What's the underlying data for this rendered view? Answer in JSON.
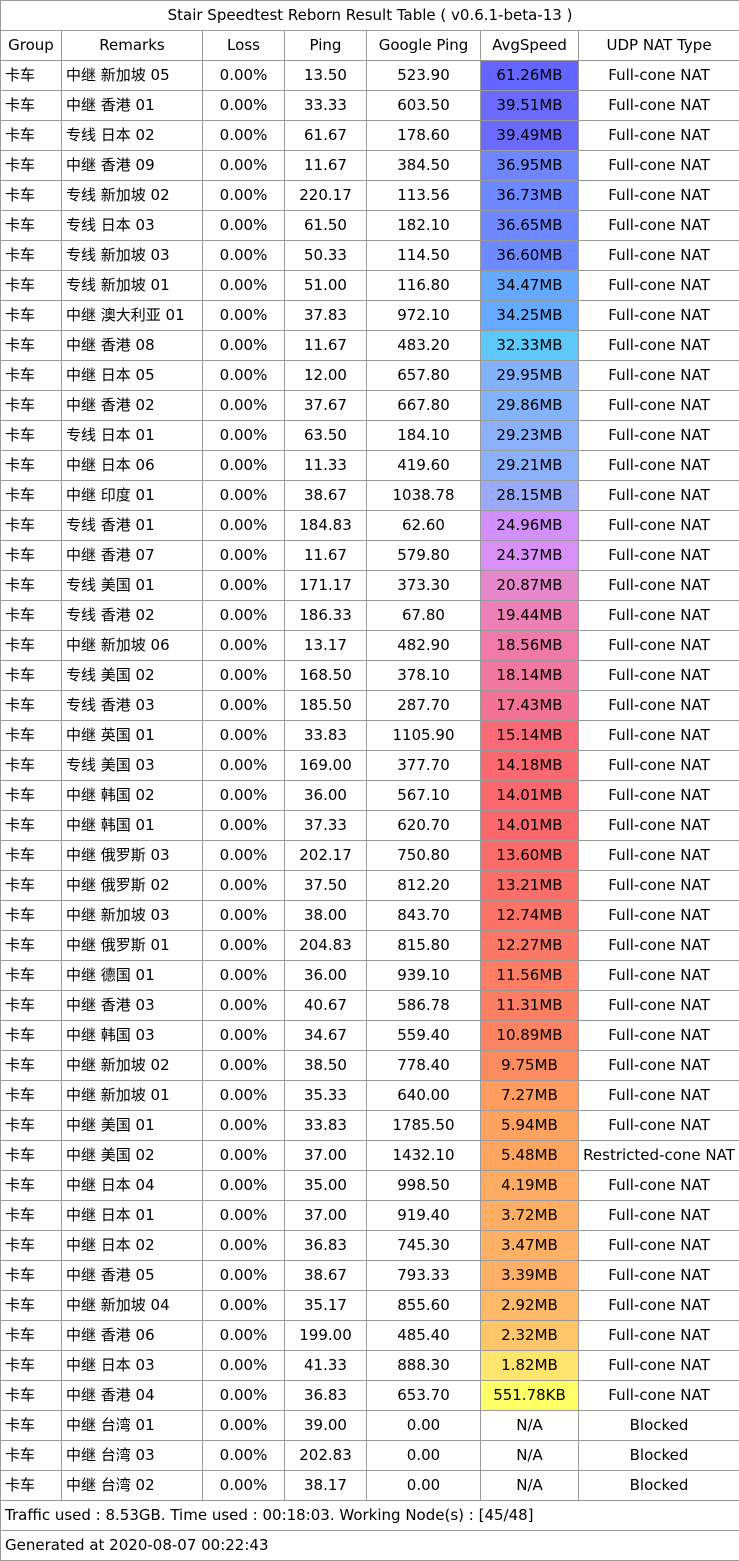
{
  "title": "Stair Speedtest Reborn Result Table ( v0.6.1-beta-13 )",
  "columns": [
    "Group",
    "Remarks",
    "Loss",
    "Ping",
    "Google Ping",
    "AvgSpeed",
    "UDP NAT Type"
  ],
  "rows": [
    {
      "group": "卡车",
      "remarks": "中继 新加坡 05",
      "loss": "0.00%",
      "ping": "13.50",
      "google_ping": "523.90",
      "avg_speed": "61.26MB",
      "speed_color": "#6464ff",
      "nat_type": "Full-cone NAT"
    },
    {
      "group": "卡车",
      "remarks": "中继 香港 01",
      "loss": "0.00%",
      "ping": "33.33",
      "google_ping": "603.50",
      "avg_speed": "39.51MB",
      "speed_color": "#6a6afd",
      "nat_type": "Full-cone NAT"
    },
    {
      "group": "卡车",
      "remarks": "专线 日本 02",
      "loss": "0.00%",
      "ping": "61.67",
      "google_ping": "178.60",
      "avg_speed": "39.49MB",
      "speed_color": "#6a6afd",
      "nat_type": "Full-cone NAT"
    },
    {
      "group": "卡车",
      "remarks": "中继 香港 09",
      "loss": "0.00%",
      "ping": "11.67",
      "google_ping": "384.50",
      "avg_speed": "36.95MB",
      "speed_color": "#6f86ff",
      "nat_type": "Full-cone NAT"
    },
    {
      "group": "卡车",
      "remarks": "专线 新加坡 02",
      "loss": "0.00%",
      "ping": "220.17",
      "google_ping": "113.56",
      "avg_speed": "36.73MB",
      "speed_color": "#6e88ff",
      "nat_type": "Full-cone NAT"
    },
    {
      "group": "卡车",
      "remarks": "专线 日本 03",
      "loss": "0.00%",
      "ping": "61.50",
      "google_ping": "182.10",
      "avg_speed": "36.65MB",
      "speed_color": "#6e89ff",
      "nat_type": "Full-cone NAT"
    },
    {
      "group": "卡车",
      "remarks": "专线 新加坡 03",
      "loss": "0.00%",
      "ping": "50.33",
      "google_ping": "114.50",
      "avg_speed": "36.60MB",
      "speed_color": "#6e8aff",
      "nat_type": "Full-cone NAT"
    },
    {
      "group": "卡车",
      "remarks": "专线 新加坡 01",
      "loss": "0.00%",
      "ping": "51.00",
      "google_ping": "116.80",
      "avg_speed": "34.47MB",
      "speed_color": "#66a8fd",
      "nat_type": "Full-cone NAT"
    },
    {
      "group": "卡车",
      "remarks": "中继 澳大利亚 01",
      "loss": "0.00%",
      "ping": "37.83",
      "google_ping": "972.10",
      "avg_speed": "34.25MB",
      "speed_color": "#66aafd",
      "nat_type": "Full-cone NAT"
    },
    {
      "group": "卡车",
      "remarks": "中继 香港 08",
      "loss": "0.00%",
      "ping": "11.67",
      "google_ping": "483.20",
      "avg_speed": "32.33MB",
      "speed_color": "#5ec8fa",
      "nat_type": "Full-cone NAT"
    },
    {
      "group": "卡车",
      "remarks": "中继 日本 05",
      "loss": "0.00%",
      "ping": "12.00",
      "google_ping": "657.80",
      "avg_speed": "29.95MB",
      "speed_color": "#83b2fd",
      "nat_type": "Full-cone NAT"
    },
    {
      "group": "卡车",
      "remarks": "中继 香港 02",
      "loss": "0.00%",
      "ping": "37.67",
      "google_ping": "667.80",
      "avg_speed": "29.86MB",
      "speed_color": "#84b3fd",
      "nat_type": "Full-cone NAT"
    },
    {
      "group": "卡车",
      "remarks": "专线 日本 01",
      "loss": "0.00%",
      "ping": "63.50",
      "google_ping": "184.10",
      "avg_speed": "29.23MB",
      "speed_color": "#8cb1fc",
      "nat_type": "Full-cone NAT"
    },
    {
      "group": "卡车",
      "remarks": "中继 日本 06",
      "loss": "0.00%",
      "ping": "11.33",
      "google_ping": "419.60",
      "avg_speed": "29.21MB",
      "speed_color": "#8cb1fc",
      "nat_type": "Full-cone NAT"
    },
    {
      "group": "卡车",
      "remarks": "中继 印度 01",
      "loss": "0.00%",
      "ping": "38.67",
      "google_ping": "1038.78",
      "avg_speed": "28.15MB",
      "speed_color": "#99aaf9",
      "nat_type": "Full-cone NAT"
    },
    {
      "group": "卡车",
      "remarks": "专线 香港 01",
      "loss": "0.00%",
      "ping": "184.83",
      "google_ping": "62.60",
      "avg_speed": "24.96MB",
      "speed_color": "#d290fb",
      "nat_type": "Full-cone NAT"
    },
    {
      "group": "卡车",
      "remarks": "中继 香港 07",
      "loss": "0.00%",
      "ping": "11.67",
      "google_ping": "579.80",
      "avg_speed": "24.37MB",
      "speed_color": "#d890f7",
      "nat_type": "Full-cone NAT"
    },
    {
      "group": "卡车",
      "remarks": "专线 美国 01",
      "loss": "0.00%",
      "ping": "171.17",
      "google_ping": "373.30",
      "avg_speed": "20.87MB",
      "speed_color": "#e888cc",
      "nat_type": "Full-cone NAT"
    },
    {
      "group": "卡车",
      "remarks": "专线 香港 02",
      "loss": "0.00%",
      "ping": "186.33",
      "google_ping": "67.80",
      "avg_speed": "19.44MB",
      "speed_color": "#ec80b7",
      "nat_type": "Full-cone NAT"
    },
    {
      "group": "卡车",
      "remarks": "中继 新加坡 06",
      "loss": "0.00%",
      "ping": "13.17",
      "google_ping": "482.90",
      "avg_speed": "18.56MB",
      "speed_color": "#ef7aa7",
      "nat_type": "Full-cone NAT"
    },
    {
      "group": "卡车",
      "remarks": "专线 美国 02",
      "loss": "0.00%",
      "ping": "168.50",
      "google_ping": "378.10",
      "avg_speed": "18.14MB",
      "speed_color": "#f077a0",
      "nat_type": "Full-cone NAT"
    },
    {
      "group": "卡车",
      "remarks": "专线 香港 03",
      "loss": "0.00%",
      "ping": "185.50",
      "google_ping": "287.70",
      "avg_speed": "17.43MB",
      "speed_color": "#f27395",
      "nat_type": "Full-cone NAT"
    },
    {
      "group": "卡车",
      "remarks": "中继 英国 01",
      "loss": "0.00%",
      "ping": "33.83",
      "google_ping": "1105.90",
      "avg_speed": "15.14MB",
      "speed_color": "#f86a78",
      "nat_type": "Full-cone NAT"
    },
    {
      "group": "卡车",
      "remarks": "专线 美国 03",
      "loss": "0.00%",
      "ping": "169.00",
      "google_ping": "377.70",
      "avg_speed": "14.18MB",
      "speed_color": "#fa6870",
      "nat_type": "Full-cone NAT"
    },
    {
      "group": "卡车",
      "remarks": "中继 韩国 02",
      "loss": "0.00%",
      "ping": "36.00",
      "google_ping": "567.10",
      "avg_speed": "14.01MB",
      "speed_color": "#fa686e",
      "nat_type": "Full-cone NAT"
    },
    {
      "group": "卡车",
      "remarks": "中继 韩国 01",
      "loss": "0.00%",
      "ping": "37.33",
      "google_ping": "620.70",
      "avg_speed": "14.01MB",
      "speed_color": "#fa686e",
      "nat_type": "Full-cone NAT"
    },
    {
      "group": "卡车",
      "remarks": "中继 俄罗斯 03",
      "loss": "0.00%",
      "ping": "202.17",
      "google_ping": "750.80",
      "avg_speed": "13.60MB",
      "speed_color": "#fa6c6a",
      "nat_type": "Full-cone NAT"
    },
    {
      "group": "卡车",
      "remarks": "中继 俄罗斯 02",
      "loss": "0.00%",
      "ping": "37.50",
      "google_ping": "812.20",
      "avg_speed": "13.21MB",
      "speed_color": "#fa6f69",
      "nat_type": "Full-cone NAT"
    },
    {
      "group": "卡车",
      "remarks": "中继 新加坡 03",
      "loss": "0.00%",
      "ping": "38.00",
      "google_ping": "843.70",
      "avg_speed": "12.74MB",
      "speed_color": "#fb7367",
      "nat_type": "Full-cone NAT"
    },
    {
      "group": "卡车",
      "remarks": "中继 俄罗斯 01",
      "loss": "0.00%",
      "ping": "204.83",
      "google_ping": "815.80",
      "avg_speed": "12.27MB",
      "speed_color": "#fb7766",
      "nat_type": "Full-cone NAT"
    },
    {
      "group": "卡车",
      "remarks": "中继 德国 01",
      "loss": "0.00%",
      "ping": "36.00",
      "google_ping": "939.10",
      "avg_speed": "11.56MB",
      "speed_color": "#fc7d64",
      "nat_type": "Full-cone NAT"
    },
    {
      "group": "卡车",
      "remarks": "中继 香港 03",
      "loss": "0.00%",
      "ping": "40.67",
      "google_ping": "586.78",
      "avg_speed": "11.31MB",
      "speed_color": "#fc7f63",
      "nat_type": "Full-cone NAT"
    },
    {
      "group": "卡车",
      "remarks": "中继 韩国 03",
      "loss": "0.00%",
      "ping": "34.67",
      "google_ping": "559.40",
      "avg_speed": "10.89MB",
      "speed_color": "#fc8362",
      "nat_type": "Full-cone NAT"
    },
    {
      "group": "卡车",
      "remarks": "中继 新加坡 02",
      "loss": "0.00%",
      "ping": "38.50",
      "google_ping": "778.40",
      "avg_speed": "9.75MB",
      "speed_color": "#fd8b60",
      "nat_type": "Full-cone NAT"
    },
    {
      "group": "卡车",
      "remarks": "中继 新加坡 01",
      "loss": "0.00%",
      "ping": "35.33",
      "google_ping": "640.00",
      "avg_speed": "7.27MB",
      "speed_color": "#fe9b5f",
      "nat_type": "Full-cone NAT"
    },
    {
      "group": "卡车",
      "remarks": "中继 美国 01",
      "loss": "0.00%",
      "ping": "33.83",
      "google_ping": "1785.50",
      "avg_speed": "5.94MB",
      "speed_color": "#fea25f",
      "nat_type": "Full-cone NAT"
    },
    {
      "group": "卡车",
      "remarks": "中继 美国 02",
      "loss": "0.00%",
      "ping": "37.00",
      "google_ping": "1432.10",
      "avg_speed": "5.48MB",
      "speed_color": "#fea560",
      "nat_type": "Restricted-cone NAT"
    },
    {
      "group": "卡车",
      "remarks": "中继 日本 04",
      "loss": "0.00%",
      "ping": "35.00",
      "google_ping": "998.50",
      "avg_speed": "4.19MB",
      "speed_color": "#feab63",
      "nat_type": "Full-cone NAT"
    },
    {
      "group": "卡车",
      "remarks": "中继 日本 01",
      "loss": "0.00%",
      "ping": "37.00",
      "google_ping": "919.40",
      "avg_speed": "3.72MB",
      "speed_color": "#feae64",
      "nat_type": "Full-cone NAT"
    },
    {
      "group": "卡车",
      "remarks": "中继 日本 02",
      "loss": "0.00%",
      "ping": "36.83",
      "google_ping": "745.30",
      "avg_speed": "3.47MB",
      "speed_color": "#feb065",
      "nat_type": "Full-cone NAT"
    },
    {
      "group": "卡车",
      "remarks": "中继 香港 05",
      "loss": "0.00%",
      "ping": "38.67",
      "google_ping": "793.33",
      "avg_speed": "3.39MB",
      "speed_color": "#feb166",
      "nat_type": "Full-cone NAT"
    },
    {
      "group": "卡车",
      "remarks": "中继 新加坡 04",
      "loss": "0.00%",
      "ping": "35.17",
      "google_ping": "855.60",
      "avg_speed": "2.92MB",
      "speed_color": "#feba68",
      "nat_type": "Full-cone NAT"
    },
    {
      "group": "卡车",
      "remarks": "中继 香港 06",
      "loss": "0.00%",
      "ping": "199.00",
      "google_ping": "485.40",
      "avg_speed": "2.32MB",
      "speed_color": "#fec66b",
      "nat_type": "Full-cone NAT"
    },
    {
      "group": "卡车",
      "remarks": "中继 日本 03",
      "loss": "0.00%",
      "ping": "41.33",
      "google_ping": "888.30",
      "avg_speed": "1.82MB",
      "speed_color": "#ffe46e",
      "nat_type": "Full-cone NAT"
    },
    {
      "group": "卡车",
      "remarks": "中继 香港 04",
      "loss": "0.00%",
      "ping": "36.83",
      "google_ping": "653.70",
      "avg_speed": "551.78KB",
      "speed_color": "#ffff66",
      "nat_type": "Full-cone NAT"
    },
    {
      "group": "卡车",
      "remarks": "中继 台湾 01",
      "loss": "0.00%",
      "ping": "39.00",
      "google_ping": "0.00",
      "avg_speed": "N/A",
      "speed_color": "#ffffff",
      "nat_type": "Blocked"
    },
    {
      "group": "卡车",
      "remarks": "中继 台湾 03",
      "loss": "0.00%",
      "ping": "202.83",
      "google_ping": "0.00",
      "avg_speed": "N/A",
      "speed_color": "#ffffff",
      "nat_type": "Blocked"
    },
    {
      "group": "卡车",
      "remarks": "中继 台湾 02",
      "loss": "0.00%",
      "ping": "38.17",
      "google_ping": "0.00",
      "avg_speed": "N/A",
      "speed_color": "#ffffff",
      "nat_type": "Blocked"
    }
  ],
  "footer": {
    "traffic": "Traffic used : 8.53GB. Time used : 00:18:03. Working Node(s) : [45/48]",
    "generated": "Generated at 2020-08-07 00:22:43"
  }
}
